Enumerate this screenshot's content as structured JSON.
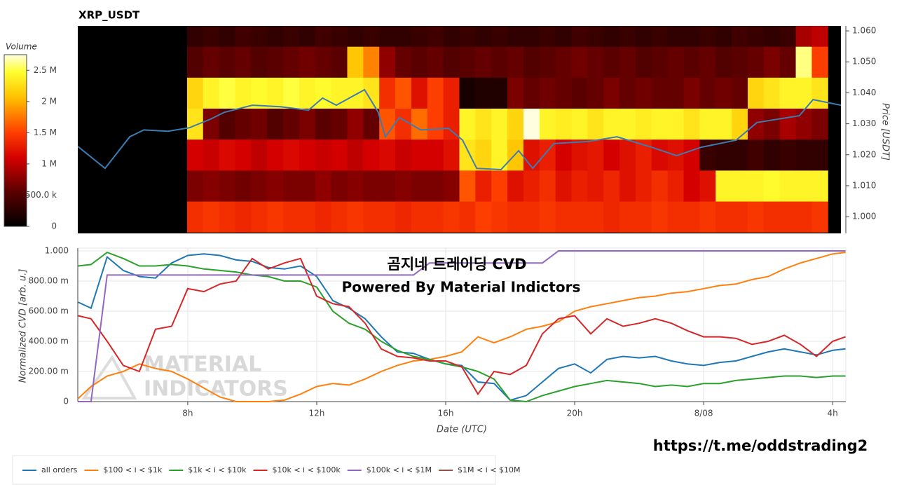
{
  "chart_data": [
    {
      "type": "heatmap",
      "title": "XRP_USDT",
      "y_label": "Price [USDT]",
      "xlim": [
        4.59,
        28.41
      ],
      "ylim": [
        0.9946,
        1.0616
      ],
      "yticks": [
        {
          "value": 1.0,
          "label": "1.000"
        },
        {
          "value": 1.01,
          "label": "1.010"
        },
        {
          "value": 1.02,
          "label": "1.020"
        },
        {
          "value": 1.03,
          "label": "1.030"
        },
        {
          "value": 1.04,
          "label": "1.040"
        },
        {
          "value": 1.05,
          "label": "1.050"
        },
        {
          "value": 1.06,
          "label": "1.060"
        }
      ],
      "colorbar": {
        "title": "Volume",
        "lim": [
          0,
          2.75
        ],
        "ticks": [
          0,
          {
            "value": 0.5,
            "label": "500.0 k"
          },
          {
            "value": 1,
            "label": "1 M"
          },
          {
            "value": 1.5,
            "label": "1.5 M"
          },
          {
            "value": 2,
            "label": "2 M"
          },
          {
            "value": 2.5,
            "label": "2.5 M"
          }
        ]
      },
      "colorscale": [
        [
          0,
          "#000000"
        ],
        [
          0.2,
          "#5a0000"
        ],
        [
          0.4,
          "#d40000"
        ],
        [
          0.55,
          "#ff4000"
        ],
        [
          0.75,
          "#ffc000"
        ],
        [
          0.9,
          "#ffff30"
        ],
        [
          1,
          "#ffffe0"
        ]
      ],
      "bins": [
        8,
        8.5,
        9,
        9.5,
        10,
        10.5,
        11,
        11.5,
        12,
        12.5,
        13,
        13.5,
        14,
        14.5,
        15,
        15.5,
        16,
        16.5,
        17,
        17.5,
        18,
        18.5,
        19,
        19.5,
        20,
        20.5,
        21,
        21.5,
        22,
        22.5,
        23,
        23.5,
        24,
        24.5,
        25,
        25.5,
        26,
        26.5,
        27,
        27.5,
        28
      ],
      "y": [
        1.0,
        1.01,
        1.02,
        1.03,
        1.04,
        1.05,
        1.06
      ],
      "z": [
        [
          1.4,
          1.45,
          1.4,
          1.35,
          1.4,
          1.45,
          1.4,
          1.4,
          1.35,
          1.4,
          1.45,
          1.4,
          1.4,
          1.35,
          1.4,
          1.4,
          1.45,
          1.4,
          1.5,
          1.45,
          1.4,
          1.4,
          1.45,
          1.4,
          1.4,
          1.4,
          1.35,
          1.4,
          1.4,
          1.45,
          1.4,
          1.4,
          1.45,
          1.4,
          1.4,
          1.45,
          1.4,
          1.4,
          1.4,
          1.45
        ],
        [
          0.7,
          0.75,
          0.7,
          0.65,
          0.7,
          0.75,
          0.7,
          0.7,
          0.8,
          0.7,
          0.75,
          0.7,
          0.7,
          0.75,
          0.7,
          0.7,
          0.75,
          1.6,
          1.3,
          1.5,
          1.2,
          1.3,
          1.4,
          1.2,
          1.3,
          1.25,
          1.35,
          1.2,
          1.3,
          1.4,
          1.3,
          1.1,
          1.2,
          2.4,
          2.4,
          2.4,
          2.45,
          2.4,
          2.4,
          2.4
        ],
        [
          1.1,
          1.05,
          1.15,
          1.1,
          1.0,
          1.1,
          1.15,
          1.1,
          1.05,
          1.1,
          1.0,
          1.1,
          1.15,
          1.05,
          1.1,
          1.1,
          1.2,
          2.3,
          2.2,
          2.4,
          2.1,
          1.2,
          1.3,
          1.1,
          1.2,
          1.25,
          1.1,
          1.2,
          1.3,
          1.15,
          1.2,
          1.1,
          0.35,
          0.3,
          0.3,
          0.4,
          0.3,
          0.35,
          0.3,
          0.3
        ],
        [
          2.3,
          0.7,
          0.5,
          0.6,
          0.65,
          0.5,
          0.6,
          0.7,
          0.55,
          0.6,
          0.8,
          0.6,
          1.6,
          1.4,
          1.7,
          1.5,
          1.3,
          2.4,
          2.3,
          2.4,
          2.2,
          2.75,
          2.4,
          2.35,
          2.4,
          2.3,
          2.4,
          2.4,
          2.35,
          2.4,
          2.4,
          2.3,
          2.4,
          2.4,
          2.2,
          0.8,
          0.7,
          0.9,
          0.8,
          0.7
        ],
        [
          2.2,
          2.4,
          2.5,
          2.4,
          2.45,
          2.4,
          2.5,
          2.4,
          2.45,
          2.4,
          2.4,
          2.3,
          1.4,
          1.6,
          1.2,
          1.5,
          1.3,
          0.15,
          0.2,
          0.2,
          0.7,
          0.6,
          0.65,
          0.6,
          0.55,
          0.6,
          0.7,
          0.6,
          0.65,
          0.6,
          0.6,
          0.7,
          0.6,
          0.65,
          0.6,
          2.2,
          2.3,
          2.4,
          2.4,
          2.3
        ],
        [
          0.5,
          0.6,
          0.55,
          0.6,
          0.5,
          0.55,
          0.6,
          0.65,
          0.6,
          0.55,
          2.1,
          1.8,
          0.8,
          0.6,
          0.55,
          0.6,
          0.5,
          0.55,
          0.6,
          0.55,
          0.6,
          0.5,
          0.55,
          0.6,
          0.65,
          0.6,
          0.55,
          0.6,
          0.5,
          0.55,
          0.6,
          0.55,
          0.6,
          0.5,
          0.55,
          0.6,
          0.7,
          0.6,
          2.6,
          1.5
        ],
        [
          0.3,
          0.35,
          0.3,
          0.4,
          0.35,
          0.3,
          0.35,
          0.3,
          0.4,
          0.35,
          0.3,
          0.35,
          0.3,
          0.3,
          0.35,
          0.4,
          0.3,
          0.35,
          0.3,
          0.35,
          0.3,
          0.3,
          0.35,
          0.3,
          0.4,
          0.35,
          0.3,
          0.35,
          0.3,
          0.35,
          0.3,
          0.3,
          0.35,
          0.3,
          0.4,
          0.35,
          0.3,
          0.35,
          0.9,
          1.0
        ]
      ],
      "line": {
        "color": "#3b7cb3",
        "x": [
          4.59,
          5.44,
          6.21,
          6.65,
          7.41,
          8.07,
          8.73,
          9.16,
          10.04,
          10.91,
          11.79,
          12.23,
          12.66,
          13.54,
          13.97,
          14.19,
          14.63,
          15.29,
          16.16,
          16.6,
          17.04,
          17.8,
          18.35,
          18.79,
          19.45,
          20.54,
          21.42,
          22.51,
          23.28,
          24.04,
          25.14,
          25.79,
          27.11,
          27.54,
          28.41
        ],
        "values": [
          1.0227,
          1.0156,
          1.0258,
          1.028,
          1.0276,
          1.0287,
          1.0315,
          1.0337,
          1.036,
          1.0355,
          1.0344,
          1.0383,
          1.036,
          1.041,
          1.0337,
          1.0258,
          1.032,
          1.028,
          1.0285,
          1.0247,
          1.0156,
          1.0152,
          1.0213,
          1.0156,
          1.0236,
          1.0243,
          1.0258,
          1.0224,
          1.0197,
          1.0224,
          1.0247,
          1.0304,
          1.0326,
          1.0378,
          1.036
        ]
      }
    },
    {
      "type": "line",
      "x_label": "Date (UTC)",
      "y_label": "Normalized CVD [arb. u.]",
      "grid": true,
      "annotations": [
        "곰지네 트레이딩 CVD",
        "Powered By Material Indictors"
      ],
      "xlim": [
        4.59,
        28.41
      ],
      "ylim": [
        0,
        1
      ],
      "xticks": [
        {
          "value": 8,
          "label": "8h"
        },
        {
          "value": 12,
          "label": "12h"
        },
        {
          "value": 16,
          "label": "16h"
        },
        {
          "value": 20,
          "label": "20h"
        },
        {
          "value": 24,
          "label": "8/08"
        },
        {
          "value": 28,
          "label": "4h"
        }
      ],
      "yticks": [
        0,
        {
          "value": 0.2,
          "label": "200.00 m"
        },
        {
          "value": 0.4,
          "label": "400.00 m"
        },
        {
          "value": 0.6,
          "label": "600.00 m"
        },
        {
          "value": 0.8,
          "label": "800.00 m"
        },
        {
          "value": 1,
          "label": "1.000"
        }
      ],
      "x": [
        4.6,
        5,
        5.5,
        6,
        6.5,
        7,
        7.5,
        8,
        8.5,
        9,
        9.5,
        10,
        10.5,
        11,
        11.5,
        12,
        12.5,
        13,
        13.5,
        14,
        14.5,
        15,
        15.5,
        16,
        16.5,
        17,
        17.5,
        18,
        18.5,
        19,
        19.5,
        20,
        20.5,
        21,
        21.5,
        22,
        22.5,
        23,
        23.5,
        24,
        24.5,
        25,
        25.5,
        26,
        26.5,
        27,
        27.5,
        28,
        28.4
      ],
      "series": [
        {
          "name": "all orders",
          "color": "#1f77b4",
          "values": [
            0.66,
            0.62,
            0.96,
            0.87,
            0.83,
            0.82,
            0.92,
            0.97,
            0.98,
            0.97,
            0.94,
            0.93,
            0.89,
            0.88,
            0.9,
            0.83,
            0.67,
            0.62,
            0.55,
            0.43,
            0.33,
            0.32,
            0.28,
            0.25,
            0.24,
            0.13,
            0.12,
            0.01,
            0.04,
            0.13,
            0.22,
            0.25,
            0.19,
            0.28,
            0.3,
            0.29,
            0.3,
            0.27,
            0.25,
            0.24,
            0.26,
            0.27,
            0.3,
            0.33,
            0.35,
            0.33,
            0.31,
            0.34,
            0.35
          ]
        },
        {
          "name": "$100 < i < $1k",
          "color": "#ff7f0e",
          "values": [
            0.02,
            0.1,
            0.17,
            0.2,
            0.25,
            0.22,
            0.2,
            0.15,
            0.09,
            0.03,
            0.0,
            0.0,
            0.0,
            0.01,
            0.05,
            0.1,
            0.12,
            0.11,
            0.15,
            0.2,
            0.24,
            0.27,
            0.28,
            0.3,
            0.33,
            0.43,
            0.39,
            0.43,
            0.48,
            0.5,
            0.53,
            0.6,
            0.63,
            0.65,
            0.67,
            0.69,
            0.7,
            0.72,
            0.73,
            0.75,
            0.77,
            0.78,
            0.81,
            0.83,
            0.88,
            0.92,
            0.95,
            0.98,
            0.99
          ]
        },
        {
          "name": "$1k < i < $10k",
          "color": "#2ca02c",
          "values": [
            0.9,
            0.91,
            0.99,
            0.95,
            0.9,
            0.9,
            0.91,
            0.9,
            0.88,
            0.87,
            0.86,
            0.84,
            0.83,
            0.8,
            0.8,
            0.76,
            0.6,
            0.52,
            0.48,
            0.4,
            0.34,
            0.3,
            0.28,
            0.25,
            0.23,
            0.2,
            0.15,
            0.01,
            0.0,
            0.04,
            0.07,
            0.1,
            0.12,
            0.14,
            0.13,
            0.12,
            0.1,
            0.11,
            0.1,
            0.12,
            0.12,
            0.14,
            0.15,
            0.16,
            0.17,
            0.17,
            0.16,
            0.17,
            0.17
          ]
        },
        {
          "name": "$10k < i < $100k",
          "color": "#d62728",
          "values": [
            0.57,
            0.55,
            0.4,
            0.24,
            0.2,
            0.48,
            0.5,
            0.75,
            0.73,
            0.78,
            0.8,
            0.95,
            0.88,
            0.92,
            0.95,
            0.7,
            0.65,
            0.63,
            0.52,
            0.35,
            0.3,
            0.29,
            0.27,
            0.27,
            0.23,
            0.05,
            0.2,
            0.18,
            0.24,
            0.45,
            0.55,
            0.57,
            0.45,
            0.55,
            0.5,
            0.52,
            0.55,
            0.52,
            0.47,
            0.43,
            0.43,
            0.42,
            0.38,
            0.4,
            0.44,
            0.38,
            0.3,
            0.4,
            0.43
          ]
        },
        {
          "name": "$100k < i < $1M",
          "color": "#9467bd",
          "values": [
            0,
            0,
            0.84,
            0.84,
            0.84,
            0.84,
            0.84,
            0.84,
            0.84,
            0.84,
            0.84,
            0.84,
            0.84,
            0.84,
            0.84,
            0.84,
            0.84,
            0.84,
            0.84,
            0.84,
            0.84,
            0.84,
            0.92,
            0.92,
            0.92,
            0.92,
            0.92,
            0.92,
            0.92,
            0.92,
            1,
            1,
            1,
            1,
            1,
            1,
            1,
            1,
            1,
            1,
            1,
            1,
            1,
            1,
            1,
            1,
            1,
            1,
            1
          ]
        },
        {
          "name": "$1M < i < $10M",
          "color": "#8c564b",
          "values": [
            null,
            null,
            null,
            null,
            null,
            null,
            null,
            null,
            null,
            null,
            null,
            null,
            null,
            null,
            null,
            null,
            null,
            null,
            null,
            null,
            null,
            null,
            null,
            null,
            null,
            null,
            null,
            null,
            null,
            null,
            null,
            null,
            null,
            null,
            null,
            null,
            null,
            null,
            null,
            null,
            null,
            null,
            null,
            null,
            null,
            null,
            null,
            null,
            null
          ]
        }
      ]
    }
  ],
  "watermark": [
    "MATERIAL",
    "INDICATORS"
  ],
  "link": "https://t.me/oddstrading2"
}
